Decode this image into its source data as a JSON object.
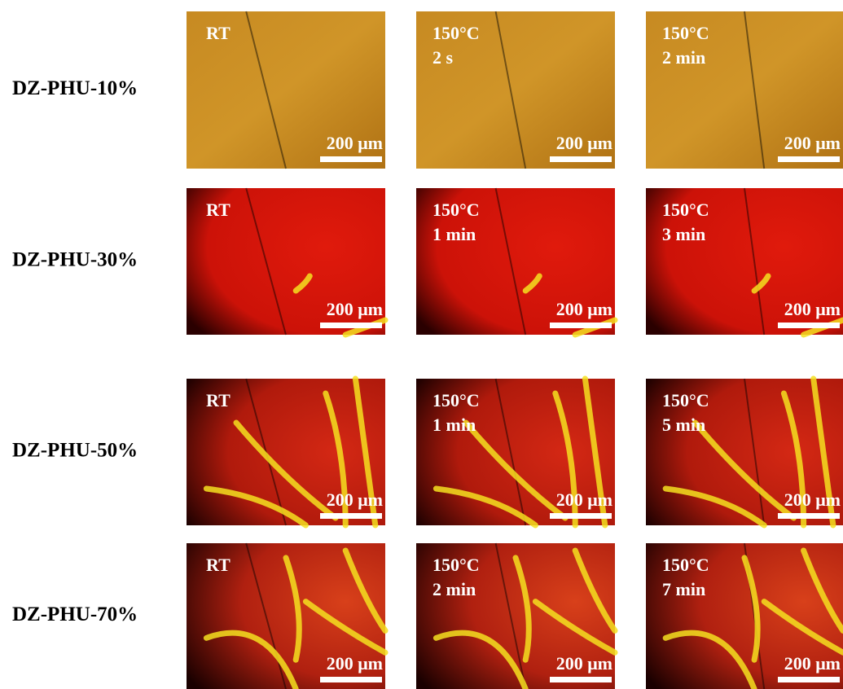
{
  "rows": [
    {
      "label": "DZ-PHU-10%",
      "panels": [
        {
          "condition": [
            "RT"
          ],
          "scale_bar": "200 μm"
        },
        {
          "condition": [
            "150°C",
            "2 s"
          ],
          "scale_bar": "200 μm"
        },
        {
          "condition": [
            "150°C",
            "2 min"
          ],
          "scale_bar": "200 μm"
        }
      ]
    },
    {
      "label": "DZ-PHU-30%",
      "panels": [
        {
          "condition": [
            "RT"
          ],
          "scale_bar": "200 μm"
        },
        {
          "condition": [
            "150°C",
            "1 min"
          ],
          "scale_bar": "200 μm"
        },
        {
          "condition": [
            "150°C",
            "3 min"
          ],
          "scale_bar": "200 μm"
        }
      ]
    },
    {
      "label": "DZ-PHU-50%",
      "panels": [
        {
          "condition": [
            "RT"
          ],
          "scale_bar": "200 μm"
        },
        {
          "condition": [
            "150°C",
            "1 min"
          ],
          "scale_bar": "200 μm"
        },
        {
          "condition": [
            "150°C",
            "5 min"
          ],
          "scale_bar": "200 μm"
        }
      ]
    },
    {
      "label": "DZ-PHU-70%",
      "panels": [
        {
          "condition": [
            "RT"
          ],
          "scale_bar": "200 μm"
        },
        {
          "condition": [
            "150°C",
            "2 min"
          ],
          "scale_bar": "200 μm"
        },
        {
          "condition": [
            "150°C",
            "7 min"
          ],
          "scale_bar": "200 μm"
        }
      ]
    }
  ]
}
